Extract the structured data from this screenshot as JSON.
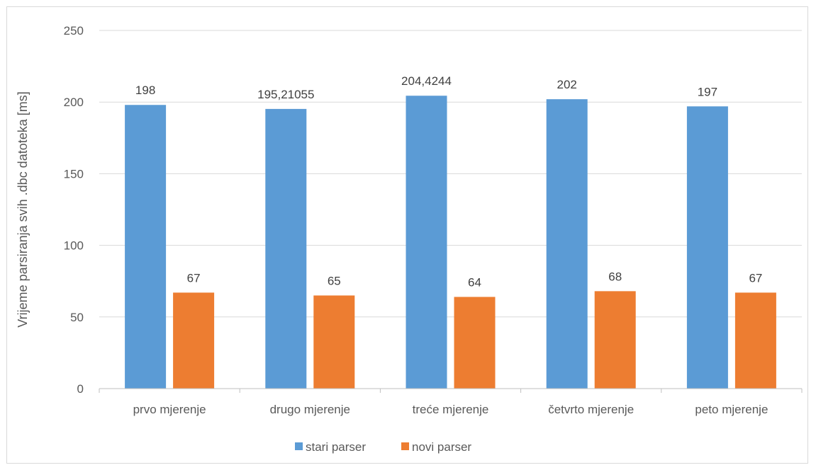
{
  "chart_data": {
    "type": "bar",
    "title": "",
    "xlabel": "",
    "ylabel": "Vrijeme parsiranja svih .dbc datoteka [ms]",
    "ylim": [
      0,
      250
    ],
    "yticks": [
      0,
      50,
      100,
      150,
      200,
      250
    ],
    "ytick_labels": [
      "0",
      "50",
      "100",
      "150",
      "200",
      "250"
    ],
    "categories": [
      "prvo mjerenje",
      "drugo mjerenje",
      "treće mjerenje",
      "četvrto mjerenje",
      "peto mjerenje"
    ],
    "series": [
      {
        "name": "stari parser",
        "color": "#5b9bd5",
        "values": [
          198,
          195.21055,
          204.4244,
          202,
          197
        ],
        "labels": [
          "198",
          "195,21055",
          "204,4244",
          "202",
          "197"
        ]
      },
      {
        "name": "novi parser",
        "color": "#ed7d31",
        "values": [
          67,
          65,
          64,
          68,
          67
        ],
        "labels": [
          "67",
          "65",
          "64",
          "68",
          "67"
        ]
      }
    ],
    "grid": true,
    "legend_position": "bottom"
  }
}
